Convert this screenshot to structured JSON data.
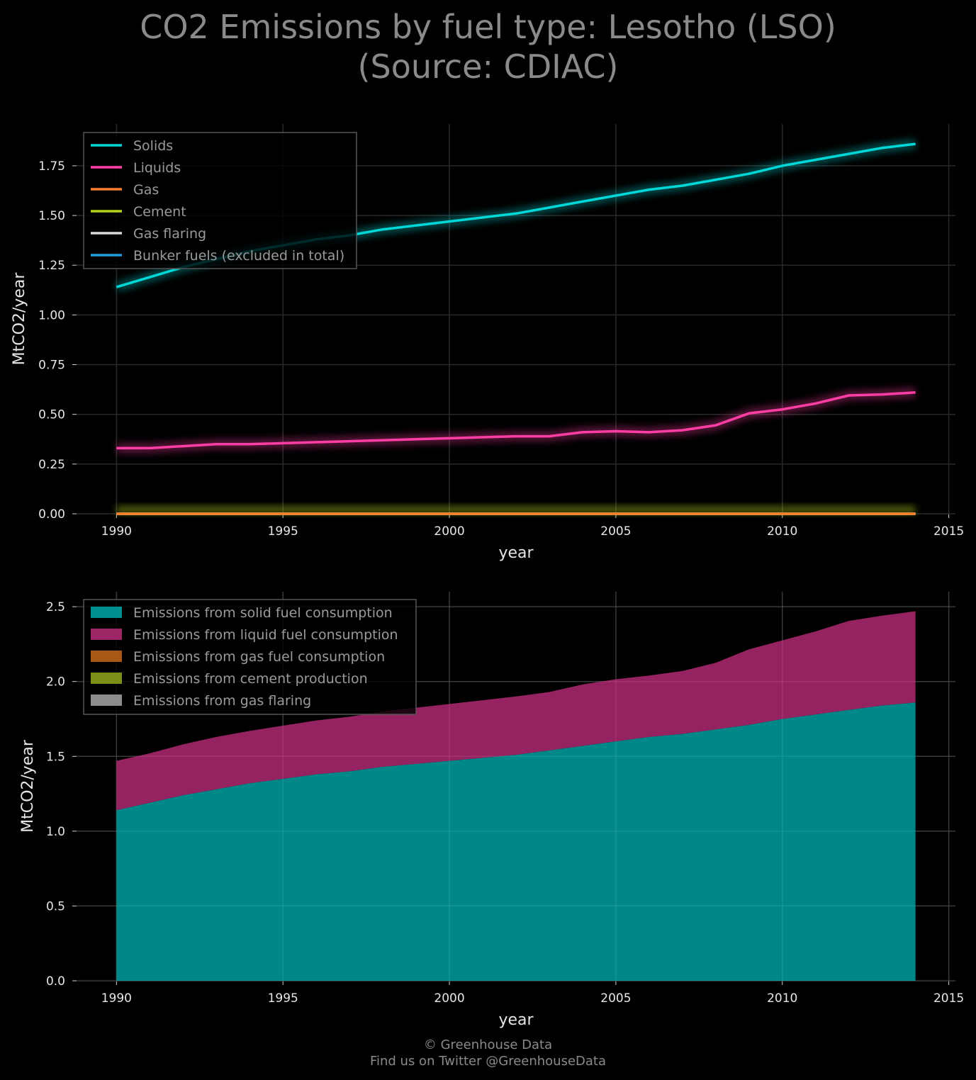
{
  "title": {
    "line1": "CO2 Emissions by fuel type: Lesotho (LSO)",
    "line2": "(Source: CDIAC)"
  },
  "footer": {
    "line1": "© Greenhouse Data",
    "line2": "Find us on Twitter @GreenhouseData"
  },
  "colors": {
    "background": "#000000",
    "grid": "#2a2a2a",
    "solids": "#00d7d7",
    "liquids": "#ff3ea5",
    "gas": "#ff7f2a",
    "cement": "#b8d11c",
    "gas_flaring": "#d9d9d9",
    "bunker": "#1f9ee0",
    "area_solid": "#008f8f",
    "area_liquid": "#9e2566",
    "area_gas": "#a85714",
    "area_cement": "#7a8f18",
    "area_flaring": "#8c8c8c"
  },
  "chart_data": [
    {
      "type": "line",
      "xlabel": "year",
      "ylabel": "MtCO2/year",
      "xlim": [
        1988.8,
        2015.2
      ],
      "ylim": [
        0,
        1.96
      ],
      "xticks": [
        1990,
        1995,
        2000,
        2005,
        2010,
        2015
      ],
      "yticks": [
        0.0,
        0.25,
        0.5,
        0.75,
        1.0,
        1.25,
        1.5,
        1.75
      ],
      "ytick_labels": [
        "0.00",
        "0.25",
        "0.50",
        "0.75",
        "1.00",
        "1.25",
        "1.50",
        "1.75"
      ],
      "grid": true,
      "legend_position": "top-left",
      "x": [
        1990,
        1991,
        1992,
        1993,
        1994,
        1995,
        1996,
        1997,
        1998,
        1999,
        2000,
        2001,
        2002,
        2003,
        2004,
        2005,
        2006,
        2007,
        2008,
        2009,
        2010,
        2011,
        2012,
        2013,
        2014
      ],
      "series": [
        {
          "name": "Solids",
          "color": "#00d7d7",
          "values": [
            1.14,
            1.19,
            1.24,
            1.28,
            1.32,
            1.35,
            1.38,
            1.4,
            1.43,
            1.45,
            1.47,
            1.49,
            1.51,
            1.54,
            1.57,
            1.6,
            1.63,
            1.65,
            1.68,
            1.71,
            1.75,
            1.78,
            1.81,
            1.84,
            1.86
          ]
        },
        {
          "name": "Liquids",
          "color": "#ff3ea5",
          "values": [
            0.33,
            0.33,
            0.34,
            0.35,
            0.35,
            0.355,
            0.36,
            0.365,
            0.37,
            0.375,
            0.38,
            0.385,
            0.39,
            0.39,
            0.41,
            0.415,
            0.41,
            0.42,
            0.445,
            0.505,
            0.525,
            0.555,
            0.595,
            0.6,
            0.61
          ]
        },
        {
          "name": "Gas",
          "color": "#ff7f2a",
          "values": [
            0,
            0,
            0,
            0,
            0,
            0,
            0,
            0,
            0,
            0,
            0,
            0,
            0,
            0,
            0,
            0,
            0,
            0,
            0,
            0,
            0,
            0,
            0,
            0,
            0
          ]
        },
        {
          "name": "Cement",
          "color": "#b8d11c",
          "values": [
            0,
            0,
            0,
            0,
            0,
            0,
            0,
            0,
            0,
            0,
            0,
            0,
            0,
            0,
            0,
            0,
            0,
            0,
            0,
            0,
            0,
            0,
            0,
            0,
            0
          ]
        },
        {
          "name": "Gas flaring",
          "color": "#d9d9d9",
          "values": [
            0,
            0,
            0,
            0,
            0,
            0,
            0,
            0,
            0,
            0,
            0,
            0,
            0,
            0,
            0,
            0,
            0,
            0,
            0,
            0,
            0,
            0,
            0,
            0,
            0
          ]
        },
        {
          "name": "Bunker fuels (excluded in total)",
          "color": "#1f9ee0",
          "values": [
            0,
            0,
            0,
            0,
            0,
            0,
            0,
            0,
            0,
            0,
            0,
            0,
            0,
            0,
            0,
            0,
            0,
            0,
            0,
            0,
            0,
            0,
            0,
            0,
            0
          ]
        }
      ]
    },
    {
      "type": "area",
      "stacked": true,
      "xlabel": "year",
      "ylabel": "MtCO2/year",
      "xlim": [
        1988.8,
        2015.2
      ],
      "ylim": [
        0,
        2.6
      ],
      "xticks": [
        1990,
        1995,
        2000,
        2005,
        2010,
        2015
      ],
      "yticks": [
        0.0,
        0.5,
        1.0,
        1.5,
        2.0,
        2.5
      ],
      "ytick_labels": [
        "0.0",
        "0.5",
        "1.0",
        "1.5",
        "2.0",
        "2.5"
      ],
      "grid": true,
      "legend_position": "top-left",
      "x": [
        1990,
        1991,
        1992,
        1993,
        1994,
        1995,
        1996,
        1997,
        1998,
        1999,
        2000,
        2001,
        2002,
        2003,
        2004,
        2005,
        2006,
        2007,
        2008,
        2009,
        2010,
        2011,
        2012,
        2013,
        2014
      ],
      "series": [
        {
          "name": "Emissions from solid fuel consumption",
          "color": "#008f8f",
          "values": [
            1.14,
            1.19,
            1.24,
            1.28,
            1.32,
            1.35,
            1.38,
            1.4,
            1.43,
            1.45,
            1.47,
            1.49,
            1.51,
            1.54,
            1.57,
            1.6,
            1.63,
            1.65,
            1.68,
            1.71,
            1.75,
            1.78,
            1.81,
            1.84,
            1.86
          ]
        },
        {
          "name": "Emissions from liquid fuel consumption",
          "color": "#9e2566",
          "values": [
            0.33,
            0.33,
            0.34,
            0.35,
            0.35,
            0.355,
            0.36,
            0.365,
            0.37,
            0.375,
            0.38,
            0.385,
            0.39,
            0.39,
            0.41,
            0.415,
            0.41,
            0.42,
            0.445,
            0.505,
            0.525,
            0.555,
            0.595,
            0.6,
            0.61
          ]
        },
        {
          "name": "Emissions from gas fuel consumption",
          "color": "#a85714",
          "values": [
            0,
            0,
            0,
            0,
            0,
            0,
            0,
            0,
            0,
            0,
            0,
            0,
            0,
            0,
            0,
            0,
            0,
            0,
            0,
            0,
            0,
            0,
            0,
            0,
            0
          ]
        },
        {
          "name": "Emissions from cement production",
          "color": "#7a8f18",
          "values": [
            0,
            0,
            0,
            0,
            0,
            0,
            0,
            0,
            0,
            0,
            0,
            0,
            0,
            0,
            0,
            0,
            0,
            0,
            0,
            0,
            0,
            0,
            0,
            0,
            0
          ]
        },
        {
          "name": "Emissions from gas flaring",
          "color": "#8c8c8c",
          "values": [
            0,
            0,
            0,
            0,
            0,
            0,
            0,
            0,
            0,
            0,
            0,
            0,
            0,
            0,
            0,
            0,
            0,
            0,
            0,
            0,
            0,
            0,
            0,
            0,
            0
          ]
        }
      ]
    }
  ]
}
